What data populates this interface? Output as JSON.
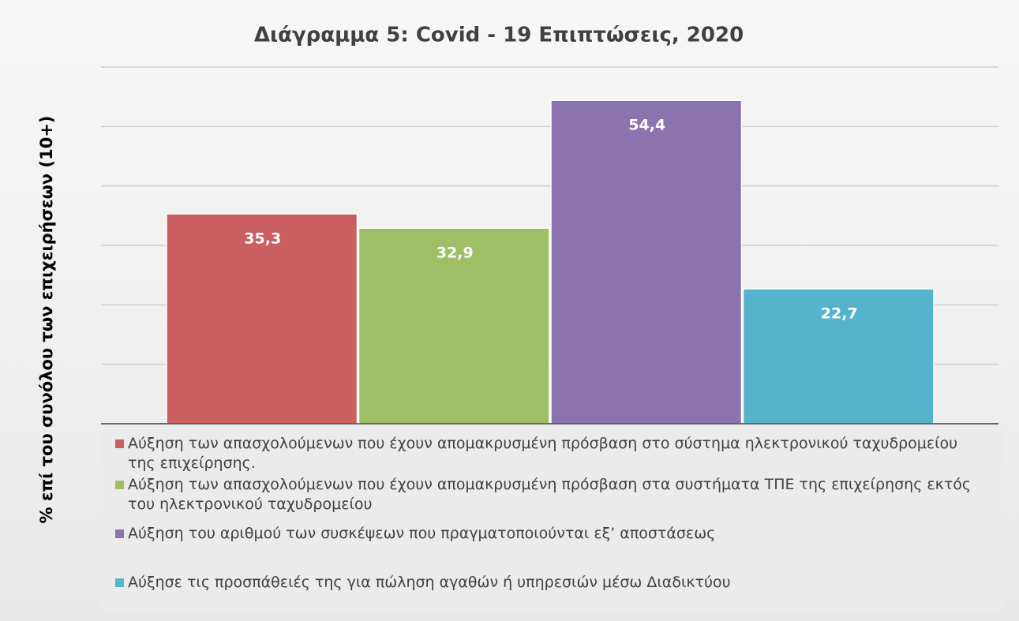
{
  "chart_data": {
    "type": "bar",
    "title": "Διάγραμμα 5: Covid - 19 Επιπτώσεις, 2020",
    "y_axis_label": "% επί του συνόλου των επιχειρήσεων (10+)",
    "categories": [
      "Αύξηση των απασχολούμενων που έχουν απομακρυσμένη πρόσβαση στο σύστημα ηλεκτρονικού ταχυδρομείου της επιχείρησης.",
      "Αύξηση των απασχολούμενων που έχουν απομακρυσμένη πρόσβαση στα συστήματα ΤΠΕ της επιχείρησης εκτός του ηλεκτρονικού ταχυδρομείου",
      "Αύξηση του αριθμού των συσκέψεων που πραγματοποιούνται εξ’ αποστάσεως",
      "Αύξησε τις προσπάθειές της για πώληση αγαθών ή υπηρεσιών μέσω Διαδικτύου"
    ],
    "values": [
      35.3,
      32.9,
      54.4,
      22.7
    ],
    "value_labels": [
      "35,3",
      "32,9",
      "54,4",
      "22,7"
    ],
    "colors": [
      "#c9605f",
      "#9fbf67",
      "#8b74ad",
      "#55b3cb"
    ],
    "ylim": [
      0,
      60
    ],
    "yticks": [
      0,
      10,
      20,
      30,
      40,
      50,
      60
    ],
    "grid": true,
    "legend": "bottom"
  }
}
